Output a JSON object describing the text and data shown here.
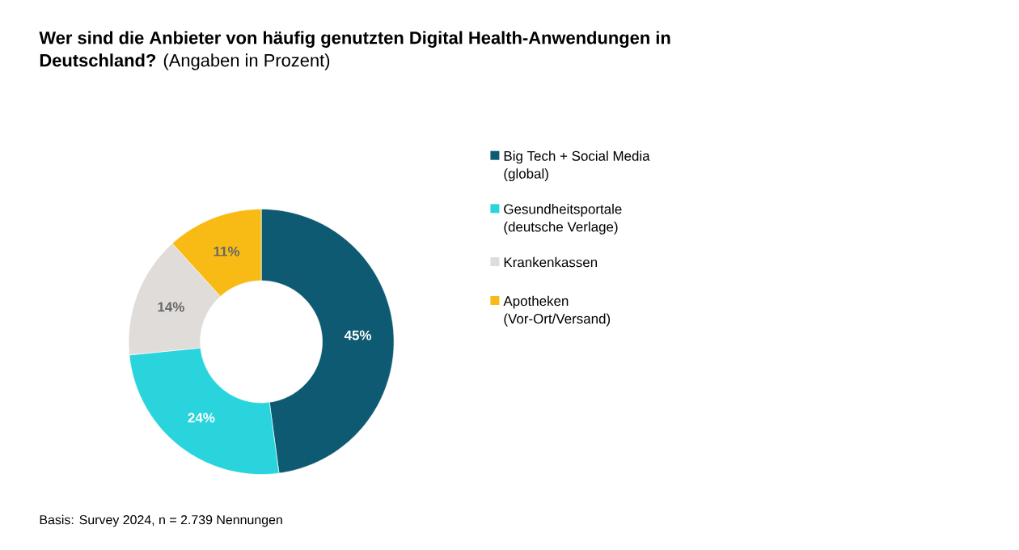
{
  "chart_data": {
    "type": "donut",
    "title": "**Wer sind die Anbieter von häufig genutzten Digital Health-Anwendungen in Deutschland?** (Angaben in Prozent)",
    "categories": [
      "Big Tech + Social Media (global)",
      "Gesundheitsportale (deutsche Verlage)",
      "Krankenkassen",
      "Apotheken (Vor-Ort/Versand)"
    ],
    "values": [
      45,
      24,
      14,
      11
    ],
    "value_labels": [
      "45%",
      "24%",
      "14%",
      "11%"
    ],
    "colors": [
      "#0e5a73",
      "#2ad4dd",
      "#e0dcd9",
      "#f8bb16"
    ],
    "legend": "right",
    "annotations": [
      "Basis: Survey 2024, n = 2.739 Nennungen"
    ]
  }
}
